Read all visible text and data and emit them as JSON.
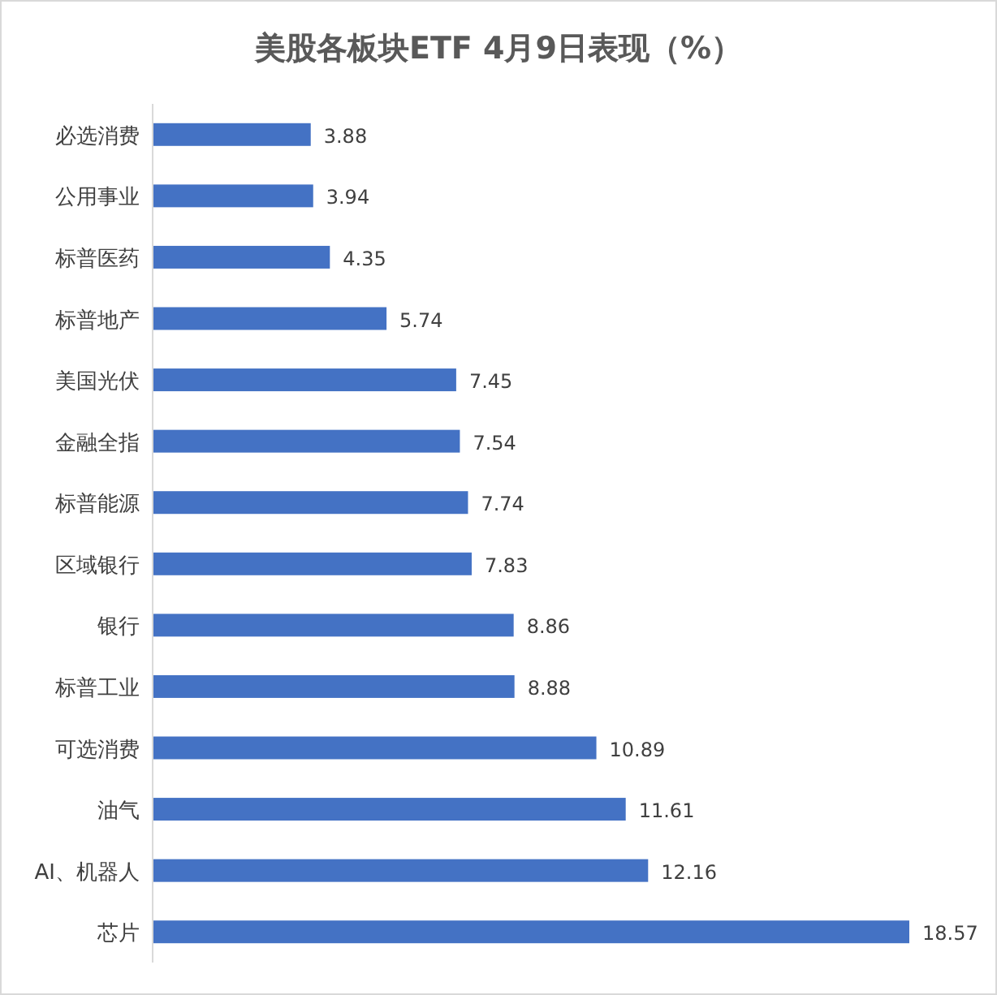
{
  "chart_data": {
    "type": "bar",
    "orientation": "horizontal",
    "title": "美股各板块ETF 4月9日表现（%）",
    "categories": [
      "必选消费",
      "公用事业",
      "标普医药",
      "标普地产",
      "美国光伏",
      "金融全指",
      "标普能源",
      "区域银行",
      "银行",
      "标普工业",
      "可选消费",
      "油气",
      "AI、机器人",
      "芯片"
    ],
    "values": [
      3.88,
      3.94,
      4.35,
      5.74,
      7.45,
      7.54,
      7.74,
      7.83,
      8.86,
      8.88,
      10.89,
      11.61,
      12.16,
      18.57
    ],
    "color": "#4472c4",
    "data_labels": true,
    "tick_labels": "y"
  }
}
